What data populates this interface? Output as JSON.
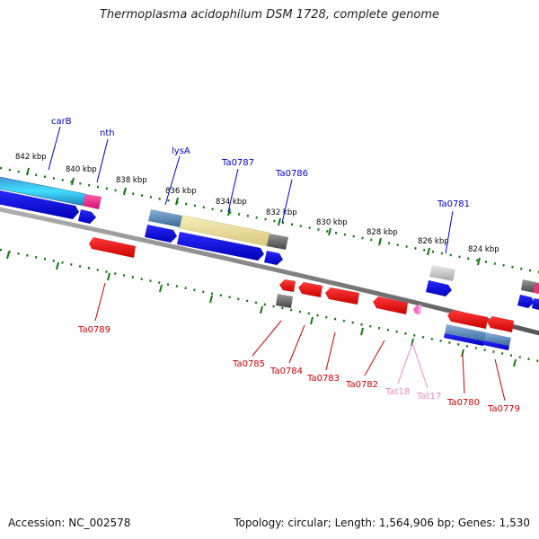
{
  "title": "Thermoplasma acidophilum DSM 1728, complete genome",
  "footer": {
    "accession": "Accession: NC_002578",
    "stats": "Topology: circular; Length: 1,564,906 bp; Genes: 1,530"
  },
  "ticks": [
    "842 kbp",
    "840 kbp",
    "838 kbp",
    "836 kbp",
    "834 kbp",
    "832 kbp",
    "830 kbp",
    "828 kbp",
    "826 kbp",
    "824 kbp"
  ],
  "genes_top": [
    "carB",
    "nth",
    "lysA",
    "Ta0787",
    "Ta0786",
    "Ta0781"
  ],
  "genes_bottom": [
    "Ta0789",
    "Ta0785",
    "Ta0784",
    "Ta0783",
    "Ta0782",
    "Tat18",
    "Tat17",
    "Ta0780",
    "Ta0779"
  ],
  "colors": {
    "plus_strand_label": "#0000cc",
    "minus_strand_label": "#cc0000",
    "trna_label": "#ee88bb",
    "forward_feature": "#0000dd",
    "reverse_feature": "#ee0000",
    "tick": "#117711",
    "backbone": "#808080"
  }
}
